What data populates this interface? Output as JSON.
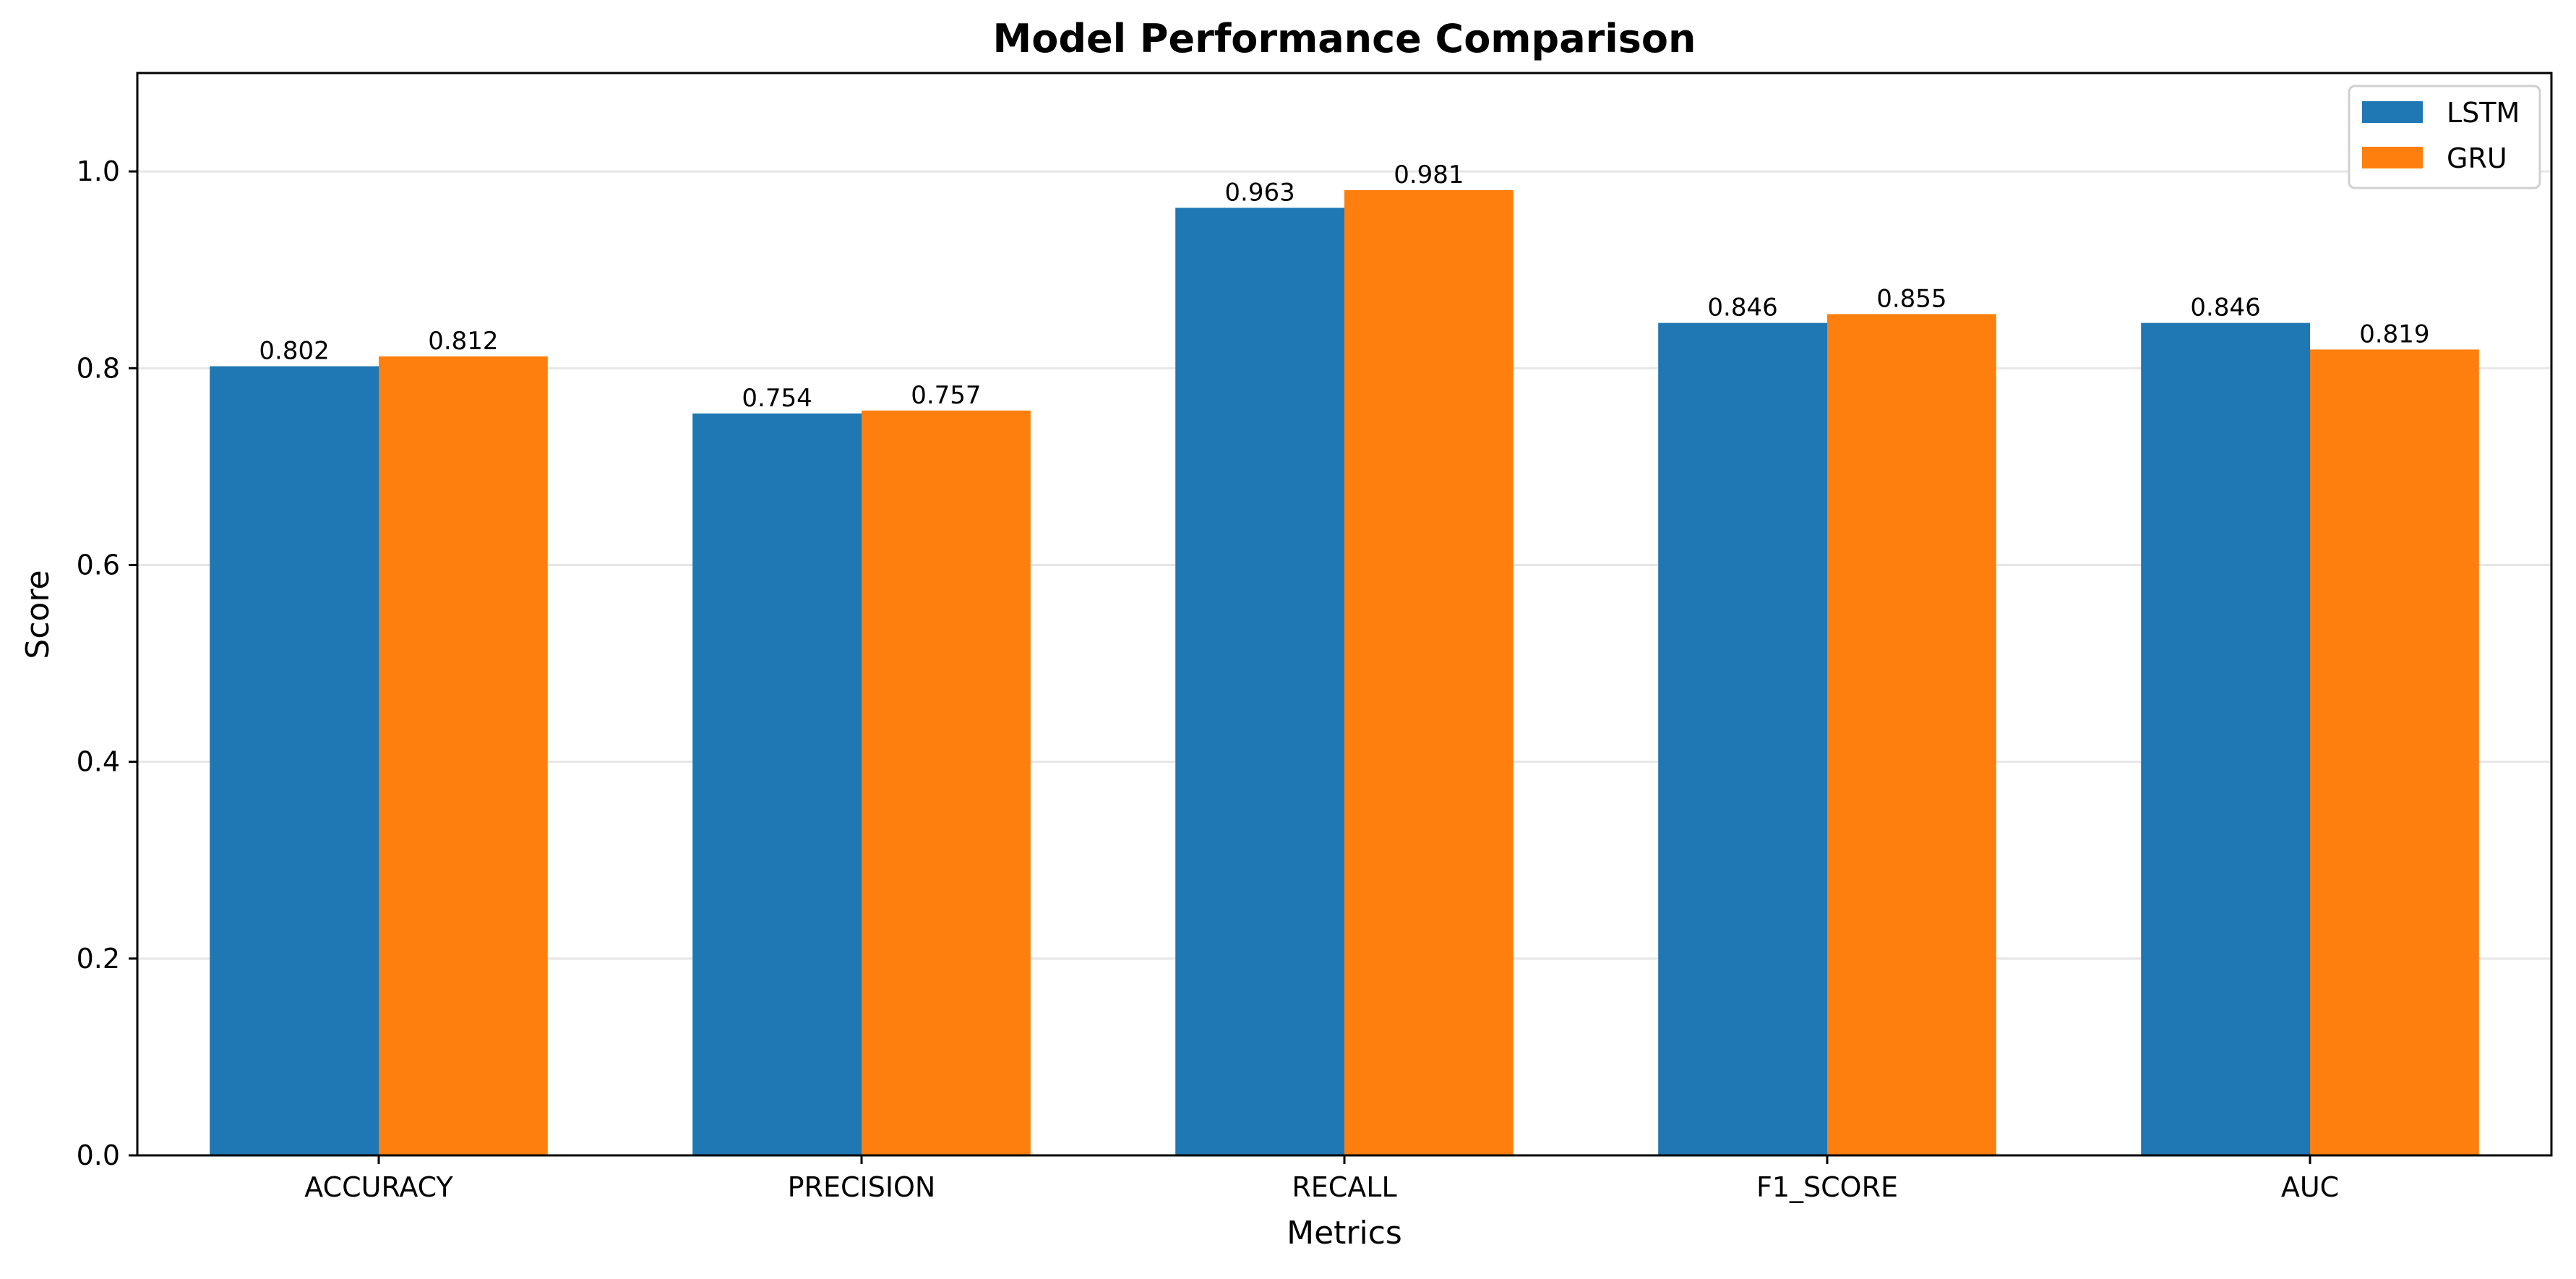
{
  "chart_data": {
    "type": "bar",
    "title": "Model Performance Comparison",
    "xlabel": "Metrics",
    "ylabel": "Score",
    "ylim": [
      0,
      1.1
    ],
    "yticks": [
      0.0,
      0.2,
      0.4,
      0.6,
      0.8,
      1.0
    ],
    "ytick_labels": [
      "0.0",
      "0.2",
      "0.4",
      "0.6",
      "0.8",
      "1.0"
    ],
    "categories": [
      "ACCURACY",
      "PRECISION",
      "RECALL",
      "F1_SCORE",
      "AUC"
    ],
    "series": [
      {
        "name": "LSTM",
        "color": "#1f77b4",
        "values": [
          0.802,
          0.754,
          0.963,
          0.846,
          0.846
        ],
        "labels": [
          "0.802",
          "0.754",
          "0.963",
          "0.846",
          "0.846"
        ]
      },
      {
        "name": "GRU",
        "color": "#ff7f0e",
        "values": [
          0.812,
          0.757,
          0.981,
          0.855,
          0.819
        ],
        "labels": [
          "0.812",
          "0.757",
          "0.981",
          "0.855",
          "0.819"
        ]
      }
    ],
    "grid": "y",
    "legend_position": "top-right"
  }
}
